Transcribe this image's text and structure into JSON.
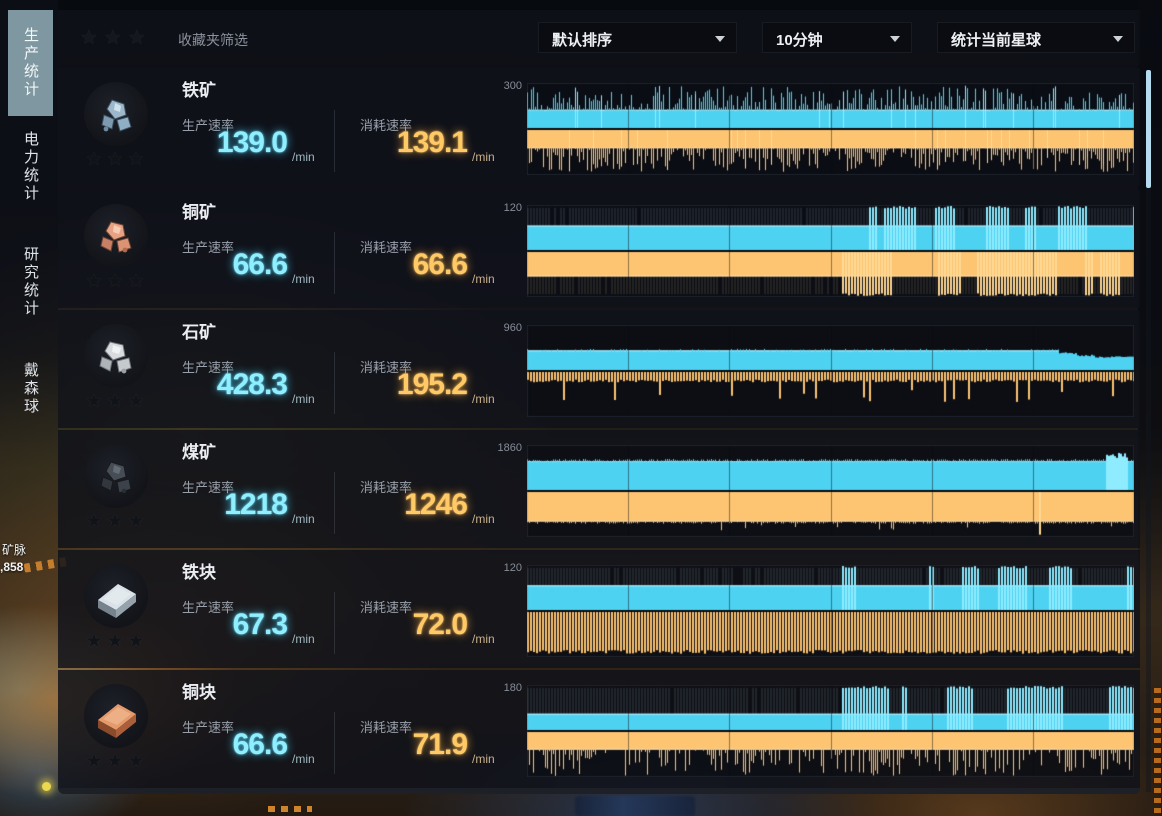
{
  "game_background": {
    "vein_label": "矿脉",
    "vein_amount": ",858"
  },
  "sidebar": {
    "tabs": [
      {
        "label": "生产统计",
        "selected": true
      },
      {
        "label": "电力统计",
        "selected": false
      },
      {
        "label": "研究统计",
        "selected": false
      },
      {
        "label": "戴森球",
        "selected": false
      }
    ]
  },
  "toolbar": {
    "stars": "★★★",
    "favorites_filter_label": "收藏夹筛选",
    "sort_select": "默认排序",
    "time_select": "10分钟",
    "scope_select": "统计当前星球"
  },
  "labels": {
    "production": "生产速率",
    "consumption": "消耗速率",
    "unit": "/min",
    "stars": "★★★"
  },
  "rows": [
    {
      "name": "铁矿",
      "icon": "iron-ore",
      "prod_value": "139.0",
      "cons_value": "139.1",
      "scale_label": "300"
    },
    {
      "name": "铜矿",
      "icon": "copper-ore",
      "prod_value": "66.6",
      "cons_value": "66.6",
      "scale_label": "120"
    },
    {
      "name": "石矿",
      "icon": "stone",
      "prod_value": "428.3",
      "cons_value": "195.2",
      "scale_label": "960"
    },
    {
      "name": "煤矿",
      "icon": "coal",
      "prod_value": "1218",
      "cons_value": "1246",
      "scale_label": "1860"
    },
    {
      "name": "铁块",
      "icon": "iron-ingot",
      "prod_value": "67.3",
      "cons_value": "72.0",
      "scale_label": "120"
    },
    {
      "name": "铜块",
      "icon": "copper-ingot",
      "prod_value": "66.6",
      "cons_value": "71.9",
      "scale_label": "180"
    }
  ],
  "chart_data": [
    {
      "item": "铁矿",
      "type": "bar",
      "time_window": "10分钟",
      "ylim": [
        0,
        300
      ],
      "scale_label": "300",
      "series": [
        {
          "name": "生产速率",
          "color": "cyan",
          "avg_per_min": 139.0,
          "style": "noisy",
          "base_frac": 0.46
        },
        {
          "name": "消耗速率",
          "color": "orange",
          "avg_per_min": 139.1,
          "style": "noisy",
          "base_frac": 0.46
        }
      ]
    },
    {
      "item": "铜矿",
      "type": "bar",
      "time_window": "10分钟",
      "ylim": [
        0,
        120
      ],
      "scale_label": "120",
      "series": [
        {
          "name": "生产速率",
          "color": "cyan",
          "avg_per_min": 66.6,
          "style": "flat_dim_bright",
          "base_frac": 0.555,
          "split": 0.52
        },
        {
          "name": "消耗速率",
          "color": "orange",
          "avg_per_min": 66.6,
          "style": "flat_dim_bright",
          "base_frac": 0.555,
          "split": 0.52
        }
      ]
    },
    {
      "item": "石矿",
      "type": "bar",
      "time_window": "10分钟",
      "ylim": [
        0,
        960
      ],
      "scale_label": "960",
      "series": [
        {
          "name": "生产速率",
          "color": "cyan",
          "avg_per_min": 428.3,
          "style": "flat_drop",
          "base_frac": 0.446,
          "drop_at": 0.875
        },
        {
          "name": "消耗速率",
          "color": "orange",
          "avg_per_min": 195.2,
          "style": "striped_spikes",
          "base_frac": 0.203,
          "spike_frac": 0.55
        }
      ]
    },
    {
      "item": "煤矿",
      "type": "bar",
      "time_window": "10分钟",
      "ylim": [
        0,
        1860
      ],
      "scale_label": "1860",
      "series": [
        {
          "name": "生产速率",
          "color": "cyan",
          "avg_per_min": 1218,
          "style": "solid_jitter",
          "base_frac": 0.655,
          "bump_at": 0.955
        },
        {
          "name": "消耗速率",
          "color": "orange",
          "avg_per_min": 1246,
          "style": "solid_jitter",
          "base_frac": 0.67,
          "sparse_spikes": true,
          "big_spike_at": 0.845
        }
      ]
    },
    {
      "item": "铁块",
      "type": "bar",
      "time_window": "10分钟",
      "ylim": [
        0,
        120
      ],
      "scale_label": "120",
      "series": [
        {
          "name": "生产速率",
          "color": "cyan",
          "avg_per_min": 67.3,
          "style": "flat_dim_bright",
          "base_frac": 0.56,
          "split": 0.52
        },
        {
          "name": "消耗速率",
          "color": "orange",
          "avg_per_min": 72.0,
          "style": "striped_deep",
          "base_frac": 0.6,
          "depth": 0.93
        }
      ]
    },
    {
      "item": "铜块",
      "type": "bar",
      "time_window": "10分钟",
      "ylim": [
        0,
        180
      ],
      "scale_label": "180",
      "series": [
        {
          "name": "生产速率",
          "color": "cyan",
          "avg_per_min": 66.6,
          "style": "flat_dim_bright",
          "base_frac": 0.37,
          "split": 0.52
        },
        {
          "name": "消耗速率",
          "color": "orange",
          "avg_per_min": 71.9,
          "style": "jagged",
          "base_frac": 0.4,
          "max_frac": 1.0
        }
      ]
    }
  ],
  "colors": {
    "production_accent": "#5fdcf8",
    "consumption_accent": "#ffc76e",
    "selected_tab": "#7e97a0",
    "scrollbar_thumb": "#b5dcee"
  }
}
